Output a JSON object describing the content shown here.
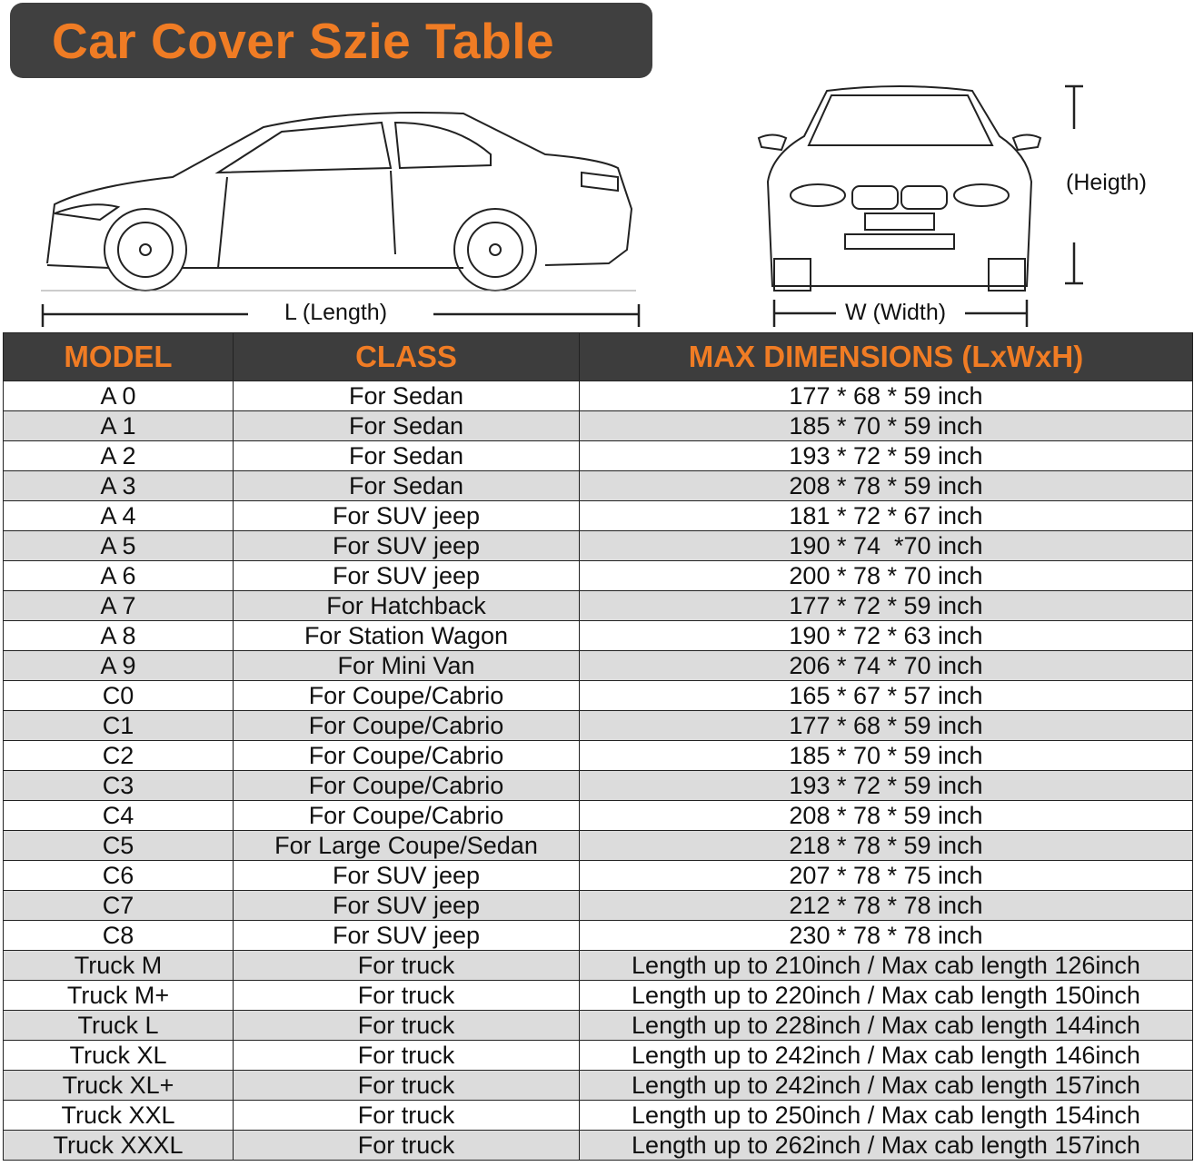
{
  "title": "Car Cover Szie Table",
  "diagram": {
    "length_label": "L (Length)",
    "width_label": "W (Width)",
    "height_label": "(Heigth)"
  },
  "table": {
    "headers": [
      "MODEL",
      "CLASS",
      "MAX DIMENSIONS (LxWxH)"
    ],
    "rows": [
      [
        "A 0",
        "For Sedan",
        "177 * 68 * 59 inch"
      ],
      [
        "A 1",
        "For Sedan",
        "185 * 70 * 59 inch"
      ],
      [
        "A 2",
        "For Sedan",
        "193 * 72 * 59 inch"
      ],
      [
        "A 3",
        "For Sedan",
        "208 * 78 * 59 inch"
      ],
      [
        "A 4",
        "For SUV jeep",
        "181 * 72 * 67 inch"
      ],
      [
        "A 5",
        "For SUV jeep",
        "190 * 74  *70 inch"
      ],
      [
        "A 6",
        "For SUV jeep",
        "200 * 78 * 70 inch"
      ],
      [
        "A 7",
        "For Hatchback",
        "177 * 72 * 59 inch"
      ],
      [
        "A 8",
        "For Station Wagon",
        "190 * 72 * 63 inch"
      ],
      [
        "A 9",
        "For Mini Van",
        "206 * 74 * 70 inch"
      ],
      [
        "C0",
        "For Coupe/Cabrio",
        "165 * 67 * 57 inch"
      ],
      [
        "C1",
        "For Coupe/Cabrio",
        "177 * 68 * 59 inch"
      ],
      [
        "C2",
        "For Coupe/Cabrio",
        "185 * 70 * 59 inch"
      ],
      [
        "C3",
        "For Coupe/Cabrio",
        "193 * 72 * 59 inch"
      ],
      [
        "C4",
        "For Coupe/Cabrio",
        "208 * 78 * 59 inch"
      ],
      [
        "C5",
        "For Large Coupe/Sedan",
        "218 * 78 * 59 inch"
      ],
      [
        "C6",
        "For SUV jeep",
        "207 * 78 * 75 inch"
      ],
      [
        "C7",
        "For SUV jeep",
        "212 * 78 * 78 inch"
      ],
      [
        "C8",
        "For SUV jeep",
        "230 * 78 * 78 inch"
      ],
      [
        "Truck M",
        "For truck",
        "Length up to 210inch / Max cab length 126inch"
      ],
      [
        "Truck M+",
        "For truck",
        "Length up to 220inch / Max cab length 150inch"
      ],
      [
        "Truck L",
        "For truck",
        "Length up to 228inch / Max cab length 144inch"
      ],
      [
        "Truck XL",
        "For truck",
        "Length up to 242inch / Max cab length 146inch"
      ],
      [
        "Truck XL+",
        "For truck",
        "Length up to 242inch / Max cab length 157inch"
      ],
      [
        "Truck XXL",
        "For truck",
        "Length up to 250inch / Max cab length 154inch"
      ],
      [
        "Truck XXXL",
        "For truck",
        "Length up to 262inch / Max cab length 157inch"
      ]
    ]
  }
}
